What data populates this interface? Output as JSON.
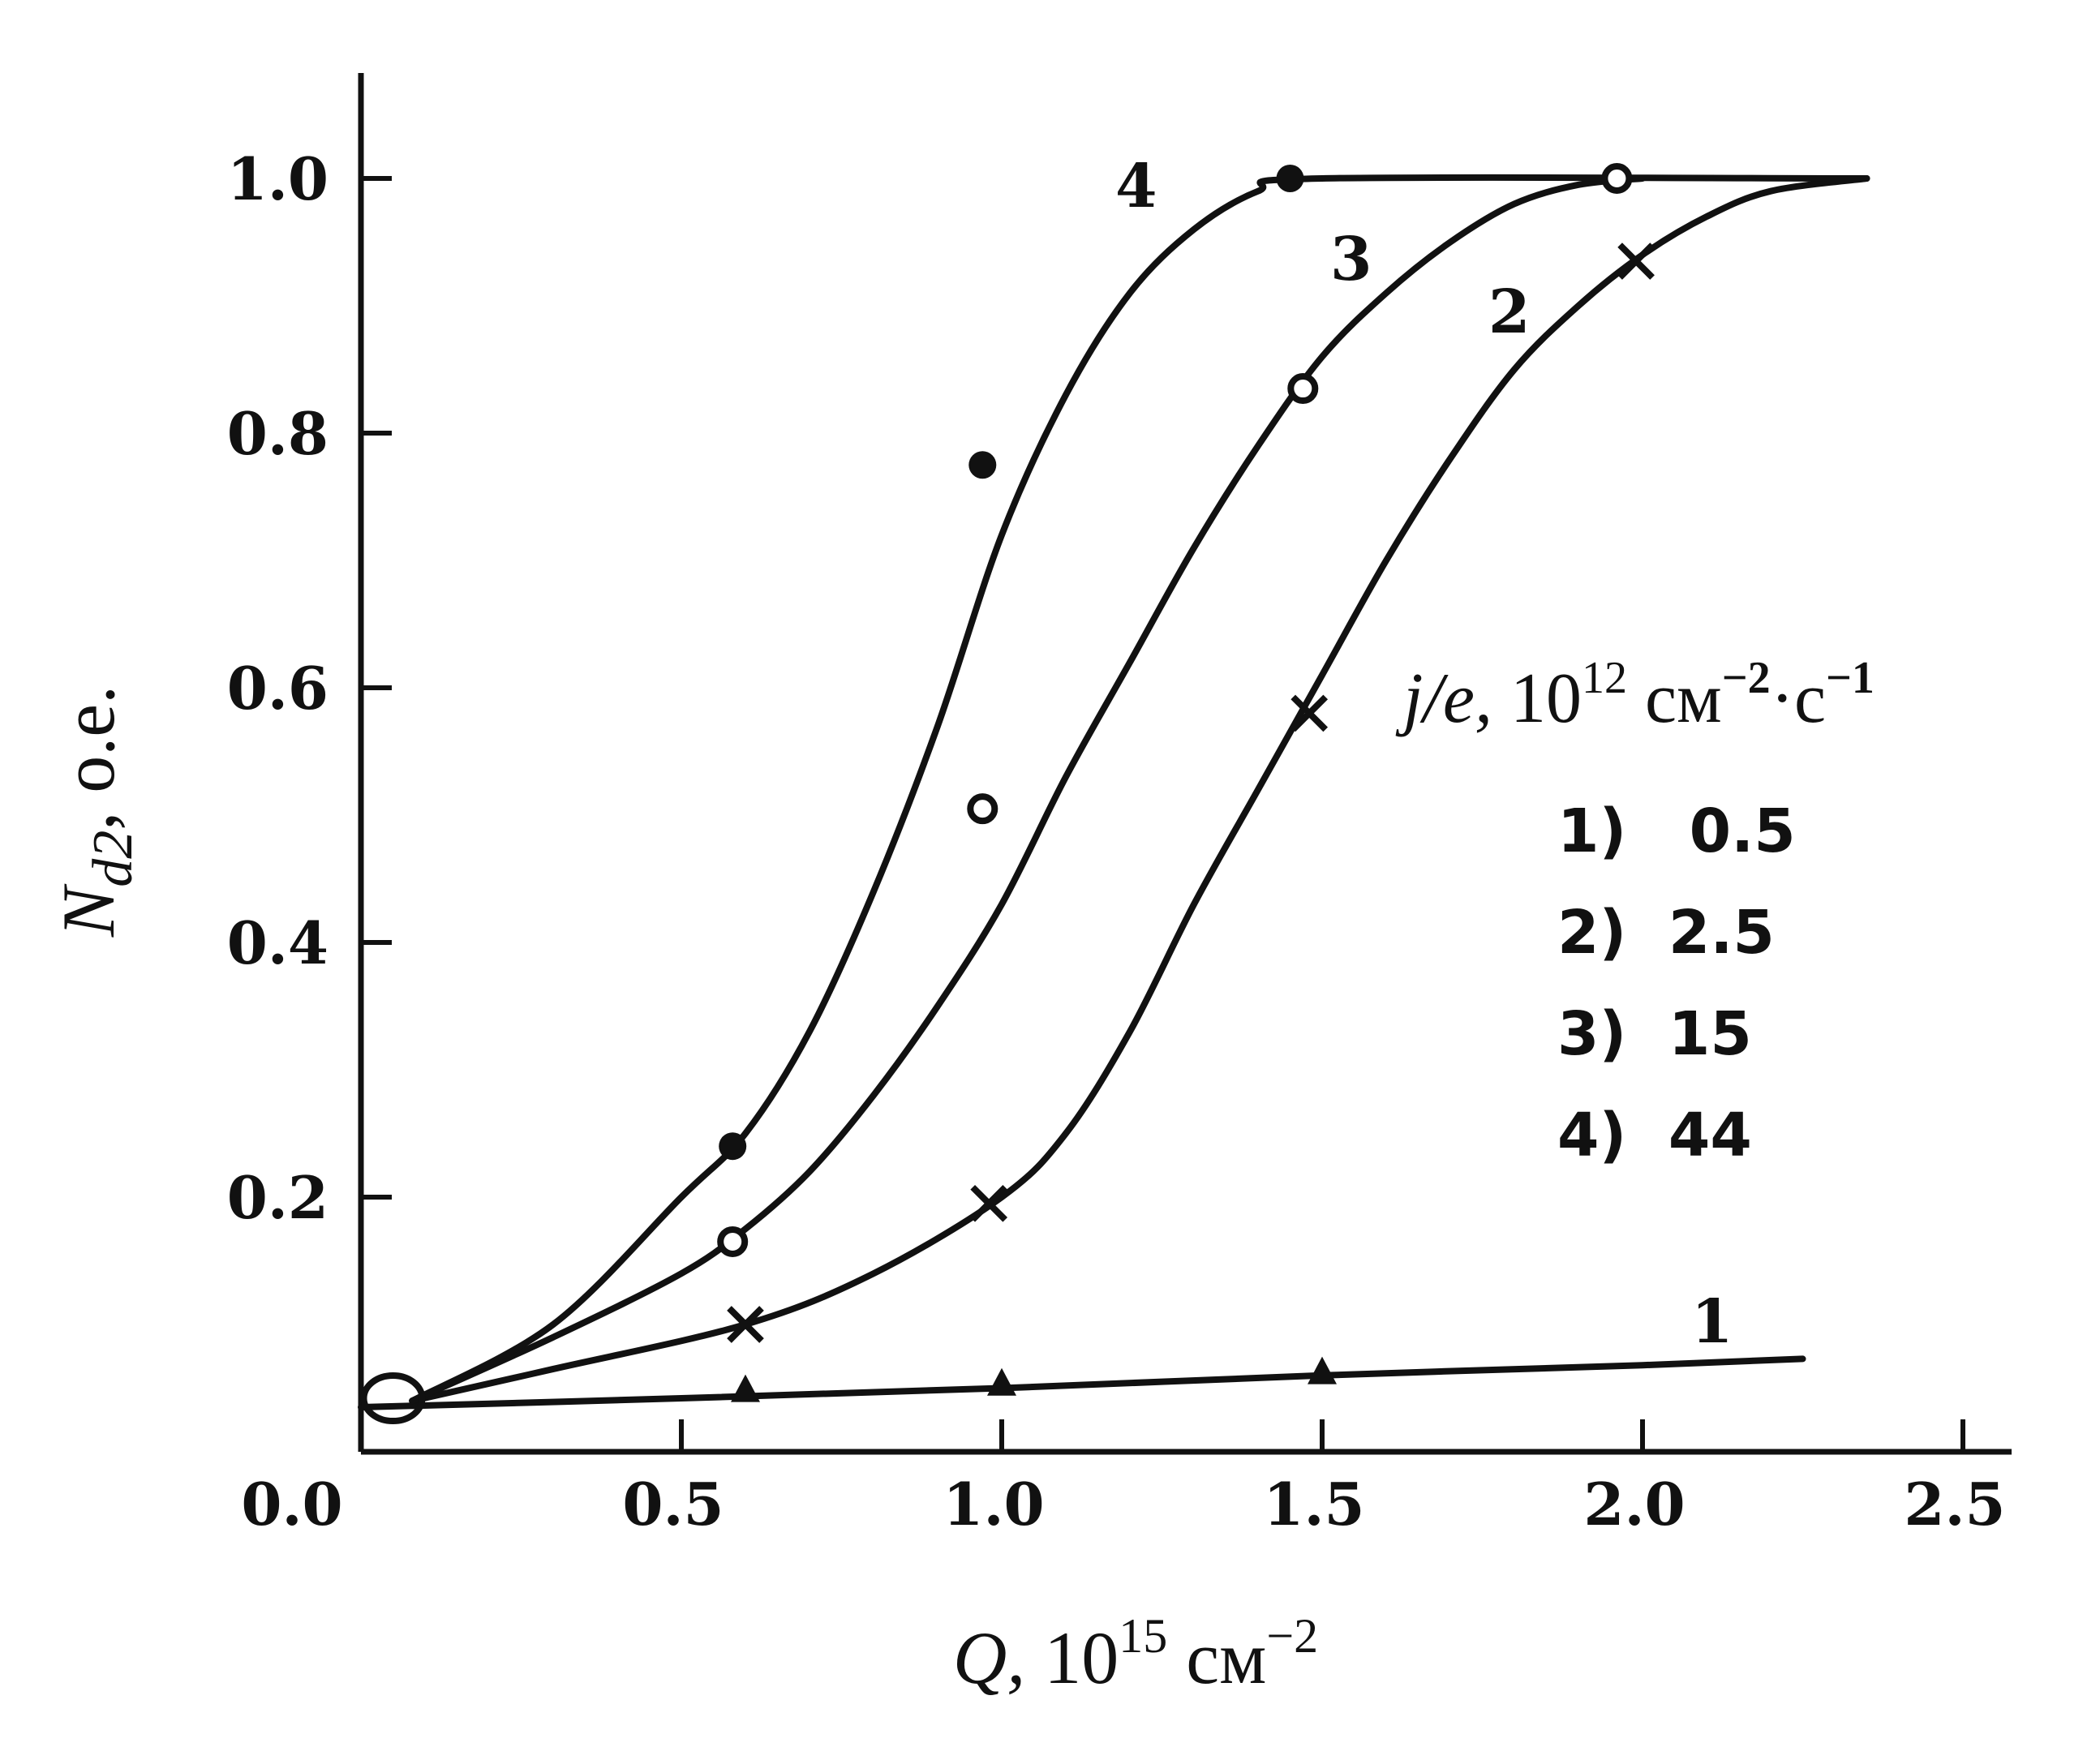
{
  "chart_data": {
    "type": "line",
    "title": "",
    "xlabel": {
      "prefix": "Q,",
      "base": " 10",
      "exp": "15",
      "unit": " см",
      "unit_exp": "−2"
    },
    "ylabel": {
      "main": "N",
      "sub": "d2",
      "suffix": ", о.е."
    },
    "xlim": [
      0.0,
      2.5
    ],
    "ylim": [
      0.0,
      1.0
    ],
    "xticks": [
      0.0,
      0.5,
      1.0,
      1.5,
      2.0,
      2.5
    ],
    "xtick_labels": [
      "0.0",
      "0.5",
      "1.0",
      "1.5",
      "2.0",
      "2.5"
    ],
    "yticks": [
      0.2,
      0.4,
      0.6,
      0.8,
      1.0
    ],
    "ytick_labels": [
      "0.2",
      "0.4",
      "0.6",
      "0.8",
      "1.0"
    ],
    "legend": {
      "title": {
        "var": "j/e,",
        "base": " 10",
        "exp": "12",
        "unit": " см",
        "unit_exp": "−2",
        "dot": "·",
        "unit2": "с",
        "unit2_exp": "−1"
      },
      "placement": "right",
      "entries": [
        "1)   0.5",
        "2)  2.5",
        "3)  15",
        "4)  44"
      ]
    },
    "series": [
      {
        "name": "1",
        "marker": "triangle",
        "curve": [
          [
            0.0,
            0.035
          ],
          [
            0.5,
            0.042
          ],
          [
            1.0,
            0.05
          ],
          [
            1.5,
            0.06
          ],
          [
            2.0,
            0.068
          ],
          [
            2.25,
            0.073
          ]
        ],
        "points": [
          [
            0.6,
            0.048
          ],
          [
            1.0,
            0.053
          ],
          [
            1.5,
            0.062
          ]
        ]
      },
      {
        "name": "2",
        "marker": "cross",
        "curve": [
          [
            0.08,
            0.04
          ],
          [
            0.3,
            0.065
          ],
          [
            0.6,
            0.1
          ],
          [
            0.8,
            0.14
          ],
          [
            1.0,
            0.2
          ],
          [
            1.1,
            0.25
          ],
          [
            1.2,
            0.33
          ],
          [
            1.3,
            0.43
          ],
          [
            1.4,
            0.52
          ],
          [
            1.5,
            0.61
          ],
          [
            1.6,
            0.7
          ],
          [
            1.7,
            0.78
          ],
          [
            1.8,
            0.85
          ],
          [
            1.9,
            0.9
          ],
          [
            2.0,
            0.94
          ],
          [
            2.1,
            0.97
          ],
          [
            2.2,
            0.99
          ],
          [
            2.35,
            1.0
          ]
        ],
        "points": [
          [
            0.6,
            0.1
          ],
          [
            0.98,
            0.195
          ],
          [
            1.48,
            0.58
          ],
          [
            1.99,
            0.935
          ]
        ]
      },
      {
        "name": "3",
        "marker": "open-circle",
        "curve": [
          [
            0.08,
            0.04
          ],
          [
            0.3,
            0.09
          ],
          [
            0.5,
            0.14
          ],
          [
            0.6,
            0.175
          ],
          [
            0.7,
            0.22
          ],
          [
            0.8,
            0.28
          ],
          [
            0.9,
            0.35
          ],
          [
            1.0,
            0.43
          ],
          [
            1.1,
            0.53
          ],
          [
            1.2,
            0.62
          ],
          [
            1.3,
            0.71
          ],
          [
            1.4,
            0.79
          ],
          [
            1.5,
            0.86
          ],
          [
            1.6,
            0.91
          ],
          [
            1.7,
            0.95
          ],
          [
            1.8,
            0.98
          ],
          [
            1.9,
            0.995
          ],
          [
            2.0,
            1.0
          ]
        ],
        "points": [
          [
            0.58,
            0.165
          ],
          [
            0.97,
            0.505
          ],
          [
            1.47,
            0.835
          ],
          [
            1.96,
            1.0
          ]
        ]
      },
      {
        "name": "4",
        "marker": "filled-circle",
        "curve": [
          [
            0.08,
            0.04
          ],
          [
            0.3,
            0.1
          ],
          [
            0.5,
            0.2
          ],
          [
            0.6,
            0.25
          ],
          [
            0.7,
            0.33
          ],
          [
            0.8,
            0.44
          ],
          [
            0.9,
            0.57
          ],
          [
            1.0,
            0.72
          ],
          [
            1.1,
            0.83
          ],
          [
            1.2,
            0.91
          ],
          [
            1.3,
            0.96
          ],
          [
            1.4,
            0.99
          ],
          [
            1.5,
            1.0
          ],
          [
            2.35,
            1.0
          ]
        ],
        "points": [
          [
            0.58,
            0.24
          ],
          [
            0.97,
            0.775
          ],
          [
            1.45,
            1.0
          ]
        ]
      }
    ],
    "origin_marker": [
      0.05,
      0.042
    ]
  }
}
